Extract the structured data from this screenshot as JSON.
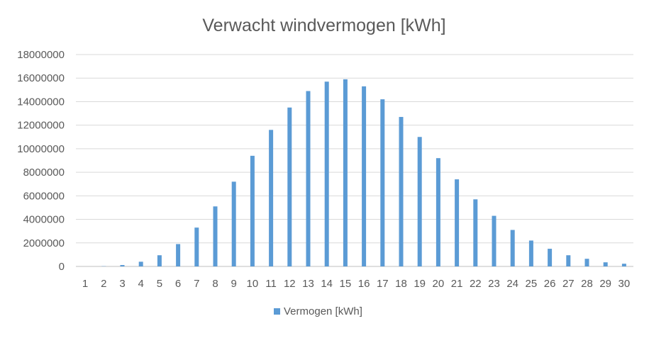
{
  "chart_data": {
    "type": "bar",
    "title": "Verwacht windvermogen [kWh]",
    "xlabel": "",
    "ylabel": "",
    "ylim": [
      0,
      18000000
    ],
    "yticks": [
      0,
      2000000,
      4000000,
      6000000,
      8000000,
      10000000,
      12000000,
      14000000,
      16000000,
      18000000
    ],
    "categories": [
      "1",
      "2",
      "3",
      "4",
      "5",
      "6",
      "7",
      "8",
      "9",
      "10",
      "11",
      "12",
      "13",
      "14",
      "15",
      "16",
      "17",
      "18",
      "19",
      "20",
      "21",
      "22",
      "23",
      "24",
      "25",
      "26",
      "27",
      "28",
      "29",
      "30"
    ],
    "series": [
      {
        "name": "Vermogen [kWh]",
        "color": "#5b9bd5",
        "values": [
          0,
          20000,
          120000,
          400000,
          950000,
          1900000,
          3300000,
          5100000,
          7200000,
          9400000,
          11600000,
          13500000,
          14900000,
          15700000,
          15900000,
          15300000,
          14200000,
          12700000,
          11000000,
          9200000,
          7400000,
          5700000,
          4300000,
          3100000,
          2200000,
          1500000,
          950000,
          650000,
          350000,
          230000
        ]
      }
    ],
    "grid": true,
    "legend": "bottom"
  }
}
